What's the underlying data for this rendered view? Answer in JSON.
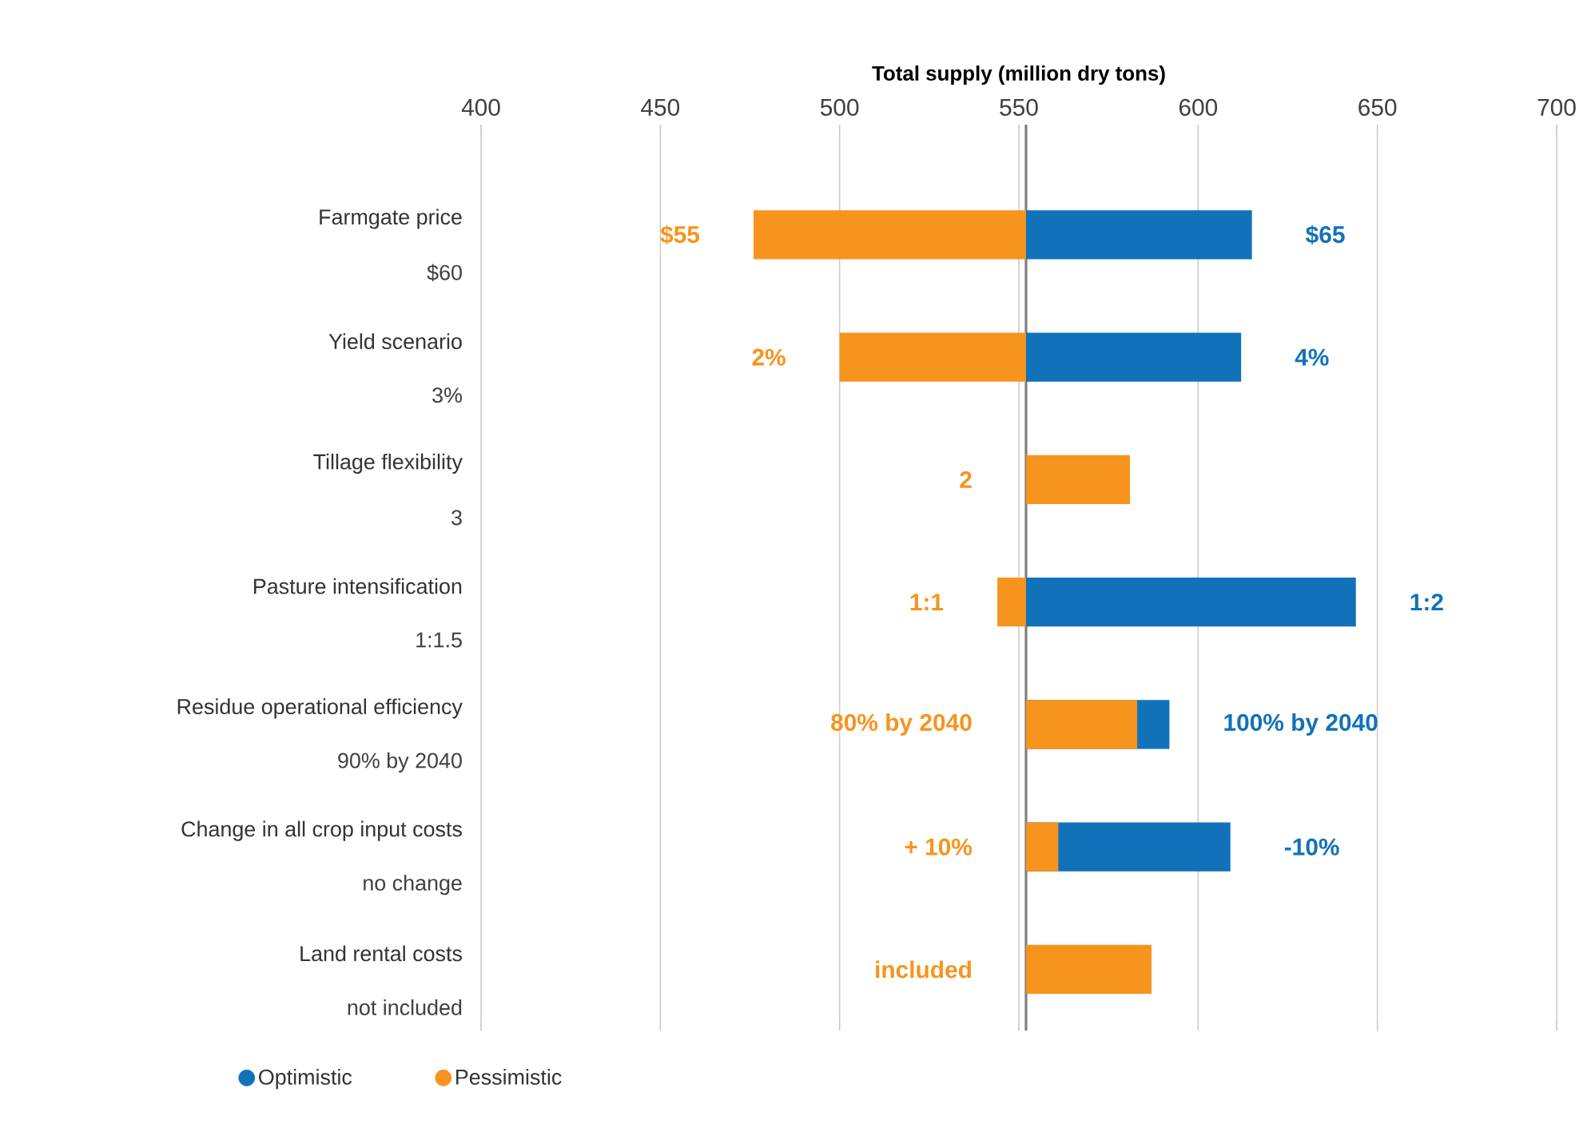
{
  "chart_data": {
    "type": "bar",
    "orientation": "horizontal",
    "xlabel": "Total supply (million dry tons)",
    "categories": [
      "Farmgate price",
      "Yield scenario",
      "Tillage flexibility",
      "Pasture intensification",
      "Residue operational efficiency",
      "Change in all crop input costs",
      "Land rental costs"
    ],
    "annotations": [
      "$60",
      "3%",
      "3",
      "1:1.5",
      "90% by 2040",
      "no change",
      "not included",
      {
        "text": "$65",
        "x": 615,
        "y": "Farmgate price"
      },
      {
        "text": "4%",
        "x": 612,
        "y": "Yield scenario"
      },
      {
        "text": "1:2",
        "x": 644,
        "y": "Pasture intensification"
      },
      {
        "text": "100% by 2040",
        "x": 592,
        "y": "Residue operational efficiency"
      },
      {
        "text": "-10%",
        "x": 609,
        "y": "Change in all crop input costs"
      },
      {
        "text": "$55",
        "x": 476,
        "y": "Farmgate price"
      },
      {
        "text": "2%",
        "x": 500,
        "y": "Yield scenario"
      },
      "2",
      {
        "text": "1:1",
        "x": 544,
        "y": "Pasture intensification"
      },
      "80% by 2040",
      "+ 10%",
      "included"
    ],
    "series": [
      {
        "name": "Optimistic",
        "color": "#1172ba",
        "base": [
          552,
          552,
          null,
          552,
          552,
          552,
          null
        ],
        "values": [
          63,
          60,
          null,
          92,
          40,
          57,
          null
        ]
      },
      {
        "name": "Pessimistic",
        "color": "#f7941d",
        "base": [
          552,
          552,
          552,
          552,
          552,
          552,
          552
        ],
        "values": [
          -76,
          -52,
          29,
          -8,
          31,
          9,
          35
        ]
      }
    ],
    "xlim": [
      400,
      700
    ],
    "xticks": [
      400,
      450,
      500,
      550,
      600,
      650,
      700
    ],
    "grid": "x",
    "legend": "bottom",
    "ref_lines": [
      {
        "axis": "x",
        "value": 552,
        "color": "#7f7f7f"
      }
    ]
  }
}
